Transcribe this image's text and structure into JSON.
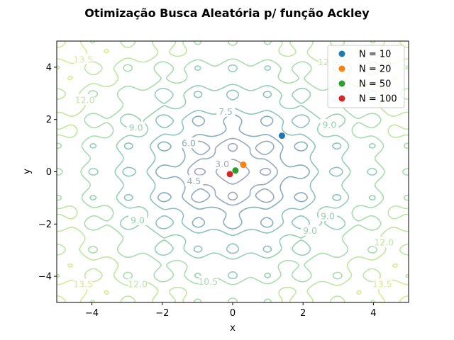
{
  "chart_data": {
    "type": "scatter",
    "title": "Otimização Busca Aleatória p/ função Ackley",
    "xlabel": "x",
    "ylabel": "y",
    "xlim": [
      -5,
      5
    ],
    "ylim": [
      -5,
      5
    ],
    "x_ticks": [
      -4,
      -2,
      0,
      2,
      4
    ],
    "y_ticks": [
      -4,
      -2,
      0,
      2,
      4
    ],
    "x_tick_labels": [
      "−4",
      "−2",
      "0",
      "2",
      "4"
    ],
    "y_tick_labels": [
      "−4",
      "−2",
      "0",
      "2",
      "4"
    ],
    "grid": false,
    "legend_position": "top-right",
    "background_contour": {
      "function": "ackley",
      "levels": [
        3.0,
        4.5,
        6.0,
        7.5,
        9.0,
        10.5,
        12.0,
        13.5
      ],
      "colors": [
        "#a0a6bd",
        "#98aabb",
        "#88aebb",
        "#8ec3bc",
        "#97d0b6",
        "#a9dcae",
        "#c0e6a2",
        "#d8eb93"
      ],
      "inline_labels": [
        {
          "text": "3.0",
          "x": -0.3,
          "y": 0.3,
          "level": 3.0
        },
        {
          "text": "4.5",
          "x": -1.1,
          "y": -0.35,
          "level": 4.5
        },
        {
          "text": "6.0",
          "x": -1.25,
          "y": 1.1,
          "level": 6.0
        },
        {
          "text": "7.5",
          "x": -0.2,
          "y": 2.3,
          "level": 7.5
        },
        {
          "text": "9.0",
          "x": -2.75,
          "y": 1.7,
          "level": 9.0
        },
        {
          "text": "9.0",
          "x": 2.75,
          "y": 1.8,
          "level": 9.0
        },
        {
          "text": "9.0",
          "x": -2.7,
          "y": -1.85,
          "level": 9.0
        },
        {
          "text": "9.0",
          "x": 2.2,
          "y": -2.25,
          "level": 9.0
        },
        {
          "text": "9.0",
          "x": 2.7,
          "y": -1.7,
          "level": 9.0
        },
        {
          "text": "10.5",
          "x": -0.7,
          "y": -4.2,
          "level": 10.5
        },
        {
          "text": "12.0",
          "x": -2.7,
          "y": -4.3,
          "level": 12.0
        },
        {
          "text": "12.0",
          "x": -4.2,
          "y": 2.75,
          "level": 12.0
        },
        {
          "text": "12.0",
          "x": 4.3,
          "y": -2.7,
          "level": 12.0
        },
        {
          "text": "12.0",
          "x": 2.7,
          "y": 4.2,
          "level": 12.0
        },
        {
          "text": "13.5",
          "x": -4.25,
          "y": 4.3,
          "level": 13.5
        },
        {
          "text": "13.5",
          "x": -4.25,
          "y": -4.3,
          "level": 13.5
        },
        {
          "text": "13.5",
          "x": 4.25,
          "y": -4.3,
          "level": 13.5
        }
      ]
    },
    "series": [
      {
        "name": "N = 10",
        "color": "#1f77b4",
        "x": [
          1.4
        ],
        "y": [
          1.38
        ]
      },
      {
        "name": "N = 20",
        "color": "#ff7f0e",
        "x": [
          0.3
        ],
        "y": [
          0.27
        ]
      },
      {
        "name": "N = 50",
        "color": "#2ca02c",
        "x": [
          0.08
        ],
        "y": [
          0.05
        ]
      },
      {
        "name": "N = 100",
        "color": "#d62728",
        "x": [
          -0.08
        ],
        "y": [
          -0.09
        ]
      }
    ]
  }
}
